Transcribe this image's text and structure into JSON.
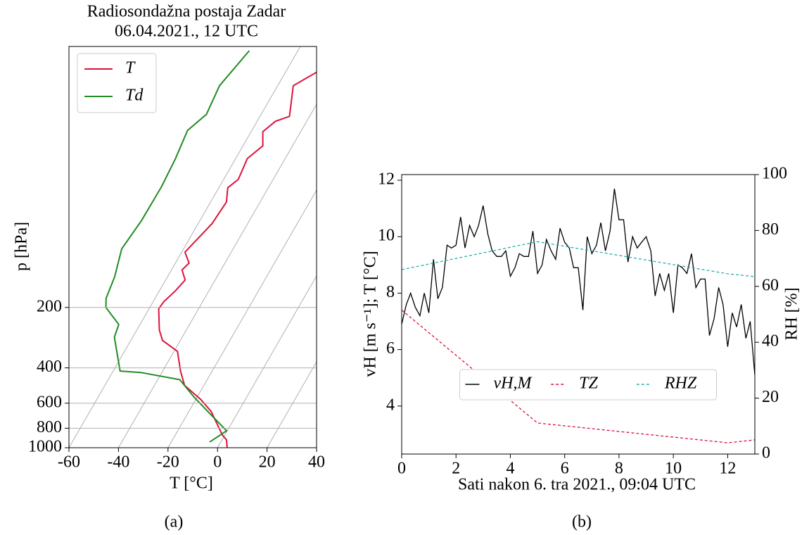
{
  "chart_data": [
    {
      "type": "skewt",
      "title": "Radiosondažna postaja Zadar",
      "subtitle": "06.04.2021., 12 UTC",
      "x_label": "T [°C]",
      "y_label": "p [hPa]",
      "panel_label": "(a)",
      "xlim": [
        -60,
        40
      ],
      "xticks": [
        -60,
        -40,
        -20,
        0,
        20,
        40
      ],
      "ylim": [
        1000,
        10
      ],
      "yticks": [
        200,
        400,
        600,
        800,
        1000
      ],
      "log_y": true,
      "grid": true,
      "legend": "upper left",
      "series": [
        {
          "name": "T",
          "color": "#dc143c",
          "x": [
            3.9,
            1.8,
            -1.0,
            -11.0,
            -18.0,
            -27.8,
            -32.8,
            -38.6,
            -47.2,
            -50.9,
            -56.1,
            -55.7,
            -53.6,
            -52.1,
            -55.7,
            -54.5,
            -58.7,
            -54.4,
            -53.6,
            -56.4,
            -54.1,
            -55.3,
            -52.0,
            -55.3,
            -52.6,
            -48.1,
            -53.7,
            -47.0
          ],
          "y": [
            1000,
            914,
            864,
            660,
            575,
            489,
            415,
            331,
            292,
            259,
            203,
            187,
            166,
            146,
            130,
            120,
            106,
            76.4,
            59.6,
            50.6,
            46.0,
            36.2,
            31.3,
            26.6,
            23.6,
            22.3,
            15.7,
            13.3
          ]
        },
        {
          "name": "Td",
          "color": "#228b22",
          "x": [
            -4.5,
            -0.3,
            -10.1,
            -21.1,
            -31.1,
            -48.4,
            -57.2,
            -67.4,
            -68.6,
            -77.7,
            -79.8,
            -81.3,
            -85.0,
            -83.6,
            -83.4,
            -84.3,
            -86.0,
            -82.1,
            -83.5,
            -79.6
          ],
          "y": [
            937,
            823,
            688,
            561,
            458,
            422,
            415,
            281,
            243,
            200,
            180,
            141,
            102,
            73.5,
            50.0,
            36.2,
            26.2,
            21.8,
            15.7,
            10.5
          ]
        }
      ]
    },
    {
      "type": "line",
      "x_label": "Sati nakon 6. tra 2021., 09:04 UTC",
      "y_label": "vH [m s⁻¹]; T [°C]",
      "y2_label": "RH [%]",
      "panel_label": "(b)",
      "xlim": [
        0,
        13
      ],
      "xticks": [
        0,
        2,
        4,
        6,
        8,
        10,
        12
      ],
      "ylim": [
        2.3,
        12.2
      ],
      "yticks": [
        4,
        6,
        8,
        10,
        12
      ],
      "y2lim": [
        0,
        100
      ],
      "y2ticks": [
        0,
        20,
        40,
        60,
        80,
        100
      ],
      "legend": "lower center",
      "series": [
        {
          "name": "vH,M",
          "color": "#000000",
          "linestyle": "solid",
          "x": [
            0,
            0.17,
            0.33,
            0.5,
            0.67,
            0.83,
            1,
            1.17,
            1.33,
            1.5,
            1.67,
            1.83,
            2,
            2.17,
            2.33,
            2.5,
            2.67,
            2.83,
            3,
            3.17,
            3.33,
            3.5,
            3.67,
            3.83,
            4,
            4.17,
            4.33,
            4.5,
            4.67,
            4.83,
            5,
            5.17,
            5.33,
            5.5,
            5.67,
            5.83,
            6,
            6.17,
            6.33,
            6.5,
            6.67,
            6.83,
            7,
            7.17,
            7.33,
            7.5,
            7.67,
            7.83,
            8,
            8.17,
            8.33,
            8.5,
            8.67,
            8.83,
            9,
            9.17,
            9.33,
            9.5,
            9.67,
            9.83,
            10,
            10.17,
            10.33,
            10.5,
            10.67,
            10.83,
            11,
            11.17,
            11.33,
            11.5,
            11.67,
            11.83,
            12,
            12.17,
            12.33,
            12.5,
            12.67,
            12.83,
            13
          ],
          "values": [
            6.9,
            7.6,
            8.0,
            7.5,
            7.2,
            8.0,
            7.3,
            9.2,
            7.8,
            8.2,
            9.7,
            9.6,
            9.7,
            10.7,
            9.6,
            10.4,
            10.0,
            10.4,
            11.1,
            10.1,
            9.5,
            9.3,
            9.3,
            9.5,
            8.6,
            8.9,
            9.4,
            9.3,
            9.3,
            10.2,
            8.7,
            9.0,
            9.9,
            9.5,
            9.2,
            10.3,
            9.8,
            9.6,
            8.9,
            8.9,
            7.4,
            10.0,
            9.4,
            9.7,
            10.5,
            9.5,
            10.2,
            11.7,
            10.6,
            10.6,
            9.1,
            10.0,
            9.6,
            9.8,
            10.0,
            9.5,
            7.9,
            8.7,
            8.1,
            8.7,
            7.3,
            9.0,
            8.9,
            8.7,
            9.4,
            8.2,
            8.5,
            8.5,
            6.5,
            7.1,
            8.2,
            7.6,
            6.1,
            7.3,
            6.8,
            7.6,
            6.4,
            7.0,
            5.1
          ]
        },
        {
          "name": "TZ",
          "color": "#dc143c",
          "linestyle": "dashed",
          "x": [
            0,
            5,
            12,
            13
          ],
          "values": [
            7.4,
            3.4,
            2.7,
            2.8
          ]
        },
        {
          "name": "RHZ",
          "color": "#20b2aa",
          "linestyle": "dashed",
          "axis": "y2",
          "x": [
            0,
            5,
            12,
            13
          ],
          "values": [
            66,
            76,
            64.5,
            63.5
          ]
        }
      ]
    }
  ]
}
